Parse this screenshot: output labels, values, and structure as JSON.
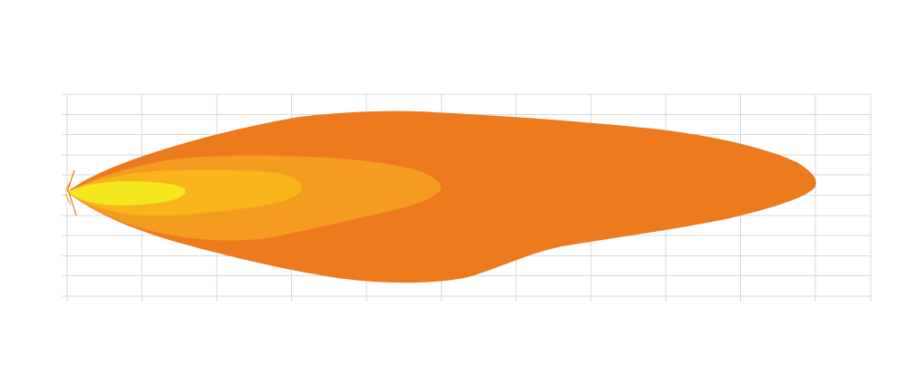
{
  "diagram": {
    "type": "beam-pattern",
    "grid": {
      "vertical_lines": 12,
      "horizontal_lines": 11,
      "visible": true,
      "color": "#d9d9d9"
    },
    "zones": [
      {
        "name": "outer-zone",
        "color": "#ee7a1e"
      },
      {
        "name": "mid-outer-zone",
        "color": "#f49c20"
      },
      {
        "name": "mid-inner-zone",
        "color": "#f9b41c"
      },
      {
        "name": "inner-zone",
        "color": "#f2e81b"
      }
    ]
  }
}
